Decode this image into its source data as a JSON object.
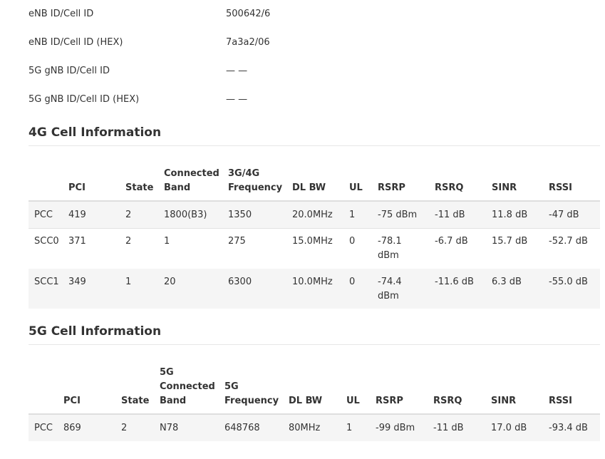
{
  "info": {
    "rows": [
      {
        "label": "eNB ID/Cell ID",
        "value": "500642/6"
      },
      {
        "label": "eNB ID/Cell ID (HEX)",
        "value": "7a3a2/06"
      },
      {
        "label": "5G gNB ID/Cell ID",
        "value": "— —"
      },
      {
        "label": "5G gNB ID/Cell ID (HEX)",
        "value": "— —"
      }
    ]
  },
  "lte": {
    "title": "4G Cell Information",
    "headers": [
      "",
      "PCI",
      "State",
      "Connected\nBand",
      "3G/4G\nFrequency",
      "DL BW",
      "UL",
      "RSRP",
      "RSRQ",
      "SINR",
      "RSSI"
    ],
    "rows": [
      [
        "PCC",
        "419",
        "2",
        "1800(B3)",
        "1350",
        "20.0MHz",
        "1",
        "-75 dBm",
        "-11 dB",
        "11.8 dB",
        "-47 dB"
      ],
      [
        "SCC0",
        "371",
        "2",
        "1",
        "275",
        "15.0MHz",
        "0",
        "-78.1\ndBm",
        "-6.7 dB",
        "15.7 dB",
        "-52.7 dB"
      ],
      [
        "SCC1",
        "349",
        "1",
        "20",
        "6300",
        "10.0MHz",
        "0",
        "-74.4\ndBm",
        "-11.6 dB",
        "6.3 dB",
        "-55.0 dB"
      ]
    ]
  },
  "nr": {
    "title": "5G Cell Information",
    "headers": [
      "",
      "PCI",
      "State",
      "5G\nConnected\nBand",
      "5G\nFrequency",
      "DL BW",
      "UL",
      "RSRP",
      "RSRQ",
      "SINR",
      "RSSI"
    ],
    "rows": [
      [
        "PCC",
        "869",
        "2",
        "N78",
        "648768",
        "80MHz",
        "1",
        "-99 dBm",
        "-11 dB",
        "17.0 dB",
        "-93.4 dB"
      ]
    ]
  }
}
